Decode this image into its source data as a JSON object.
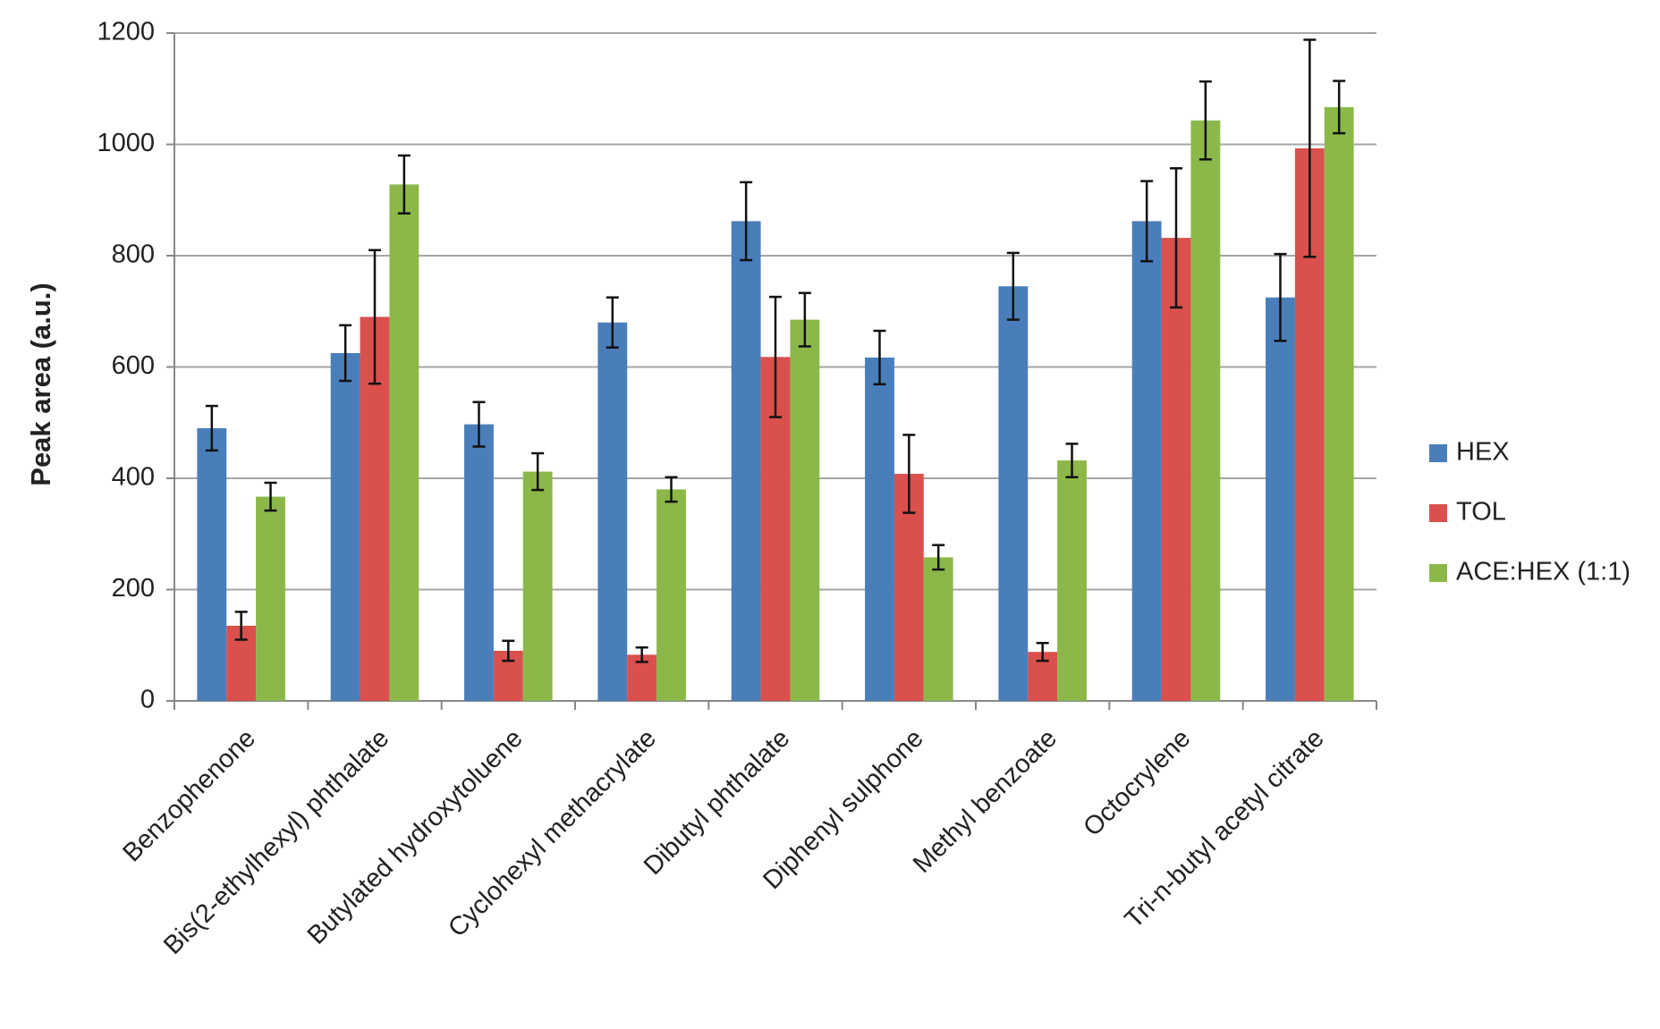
{
  "chart_data": {
    "type": "bar",
    "y_label": "Peak area (a.u.)",
    "categories": [
      "Benzophenone",
      "Bis(2-ethylhexyl) phthalate",
      "Butylated hydroxytoluene",
      "Cyclohexyl methacrylate",
      "Dibutyl phthalate",
      "Diphenyl sulphone",
      "Methyl benzoate",
      "Octocrylene",
      "Tri-n-butyl acetyl citrate"
    ],
    "series": [
      {
        "name": "HEX",
        "color": "#4a7ebb",
        "values": [
          490,
          625,
          497,
          680,
          862,
          617,
          745,
          862,
          725
        ],
        "errors": [
          40,
          50,
          40,
          45,
          70,
          48,
          60,
          72,
          78
        ]
      },
      {
        "name": "TOL",
        "color": "#d9504d",
        "values": [
          135,
          690,
          90,
          83,
          618,
          408,
          88,
          832,
          993
        ],
        "errors": [
          25,
          120,
          18,
          13,
          108,
          70,
          16,
          125,
          195
        ]
      },
      {
        "name": "ACE:HEX (1:1)",
        "color": "#8bb849",
        "values": [
          367,
          928,
          412,
          380,
          685,
          258,
          432,
          1043,
          1067
        ],
        "errors": [
          25,
          52,
          33,
          22,
          48,
          22,
          30,
          70,
          47
        ]
      }
    ],
    "ylim": [
      0,
      1200
    ],
    "yticks": [
      0,
      200,
      400,
      600,
      800,
      1000,
      1200
    ],
    "grid": true,
    "legend": "right"
  }
}
